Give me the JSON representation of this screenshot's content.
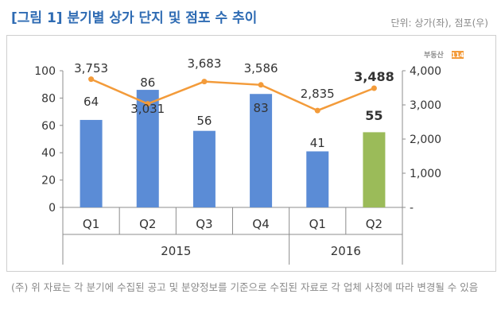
{
  "header": {
    "title": "[그림 1] 분기별 상가 단지 및 점포 수 추이",
    "unit": "단위: 상가(좌), 점포(우)"
  },
  "logo": {
    "text": "부동산",
    "badge": "114"
  },
  "note": "(주) 위 자료는 각 분기에 수집된 공고 및 분양정보를 기준으로 수집된 자료로 각 업체 사정에 따라 변경될 수 있음",
  "colors": {
    "bar": "#5b8cd6",
    "bar_highlight": "#9bbb59",
    "line": "#f39b3a",
    "title": "#2e6bb3"
  },
  "chart_data": {
    "type": "bar",
    "categories": [
      "Q1",
      "Q2",
      "Q3",
      "Q4",
      "Q1",
      "Q2"
    ],
    "groups": [
      {
        "label": "2015",
        "span": [
          0,
          3
        ]
      },
      {
        "label": "2016",
        "span": [
          4,
          5
        ]
      }
    ],
    "series": [
      {
        "axis": "left",
        "kind": "bar",
        "values": [
          64,
          86,
          56,
          83,
          41,
          55
        ],
        "labels": [
          "64",
          "86",
          "56",
          "83",
          "41",
          "55"
        ],
        "highlight_index": 5
      },
      {
        "axis": "right",
        "kind": "line",
        "values": [
          3753,
          3031,
          3683,
          3586,
          2835,
          3488
        ],
        "labels": [
          "3,753",
          "3,031",
          "3,683",
          "3,586",
          "2,835",
          "3,488"
        ],
        "highlight_index": 5
      }
    ],
    "ylim": [
      0,
      100
    ],
    "yticks": [
      "0",
      "20",
      "40",
      "60",
      "80",
      "100"
    ],
    "y2lim": [
      0,
      4000
    ],
    "y2ticks": [
      "-",
      "1,000",
      "2,000",
      "3,000",
      "4,000"
    ],
    "grid": false,
    "legend": "none"
  }
}
